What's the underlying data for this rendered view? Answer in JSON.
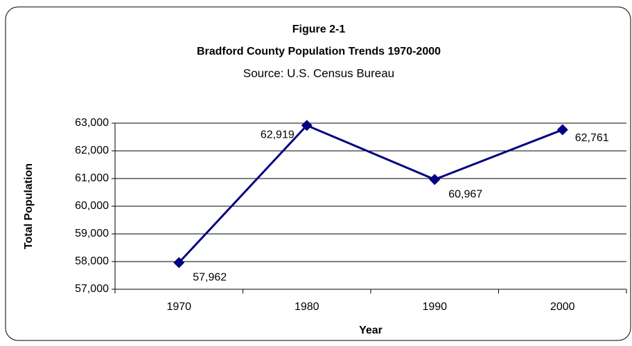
{
  "chart_data": {
    "type": "line",
    "title": "Figure 2-1",
    "subtitle": "Bradford County Population Trends 1970-2000",
    "source": "Source: U.S. Census Bureau",
    "x_label": "Year",
    "y_label": "Total Population",
    "categories": [
      "1970",
      "1980",
      "1990",
      "2000"
    ],
    "values": [
      57962,
      62919,
      60967,
      62761
    ],
    "value_labels": [
      "57,962",
      "62,919",
      "60,967",
      "62,761"
    ],
    "color": "#000080",
    "ylim": [
      57000,
      63000
    ],
    "yticks": [
      {
        "value": 57000,
        "label": "57,000"
      },
      {
        "value": 58000,
        "label": "58,000"
      },
      {
        "value": 59000,
        "label": "59,000"
      },
      {
        "value": 60000,
        "label": "60,000"
      },
      {
        "value": 61000,
        "label": "61,000"
      },
      {
        "value": 62000,
        "label": "62,000"
      },
      {
        "value": 63000,
        "label": "63,000"
      }
    ],
    "grid": true
  }
}
